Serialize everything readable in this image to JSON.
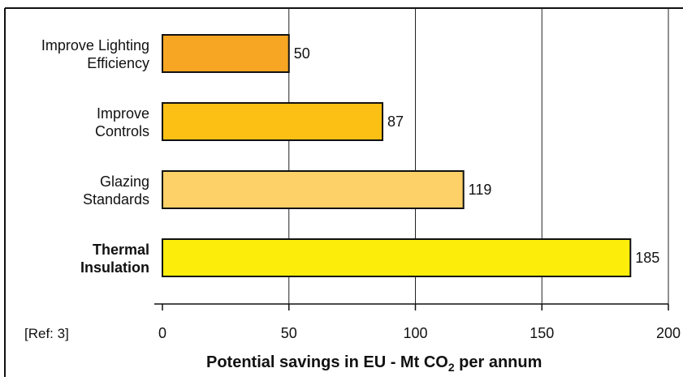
{
  "chart_data": {
    "type": "bar",
    "orientation": "horizontal",
    "categories": [
      "Improve Lighting Efficiency",
      "Improve Controls",
      "Glazing Standards",
      "Thermal Insulation"
    ],
    "category_lines": [
      [
        "Improve Lighting",
        "Efficiency"
      ],
      [
        "Improve",
        "Controls"
      ],
      [
        "Glazing",
        "Standards"
      ],
      [
        "Thermal",
        "Insulation"
      ]
    ],
    "bold_categories": [
      false,
      false,
      false,
      true
    ],
    "values": [
      50,
      87,
      119,
      185
    ],
    "data_labels": [
      "50",
      "87",
      "119",
      "185"
    ],
    "bar_colors": [
      "#f6a623",
      "#fcc015",
      "#fdd068",
      "#fcee0a"
    ],
    "xlim": [
      0,
      200
    ],
    "xticks": [
      0,
      50,
      100,
      150,
      200
    ],
    "xtick_labels": [
      "0",
      "50",
      "100",
      "150",
      "200"
    ],
    "xlabel_main": "Potential savings in EU - Mt CO",
    "xlabel_sub": "2",
    "xlabel_tail": " per annum",
    "title": "",
    "ylabel": "",
    "grid": "vertical",
    "legend": "none",
    "note": "[Ref: 3]"
  }
}
